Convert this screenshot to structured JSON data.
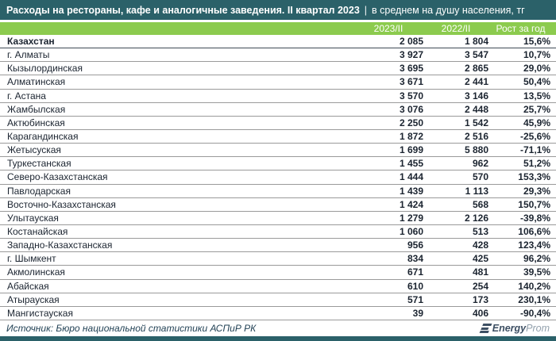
{
  "title": {
    "main": "Расходы на рестораны, кафе и аналогичные заведения. II квартал 2023",
    "separator": "|",
    "sub": "в среднем на душу населения, тг"
  },
  "table": {
    "columns": [
      "2023/II",
      "2022/II",
      "Рост за год"
    ],
    "rows": [
      {
        "region": "Казахстан",
        "v2023": "2 085",
        "v2022": "1 804",
        "growth": "15,6%",
        "total": true
      },
      {
        "region": "г. Алматы",
        "v2023": "3 927",
        "v2022": "3 547",
        "growth": "10,7%"
      },
      {
        "region": "Кызылординская",
        "v2023": "3 695",
        "v2022": "2 865",
        "growth": "29,0%"
      },
      {
        "region": "Алматинская",
        "v2023": "3 671",
        "v2022": "2 441",
        "growth": "50,4%"
      },
      {
        "region": "г. Астана",
        "v2023": "3 570",
        "v2022": "3 146",
        "growth": "13,5%"
      },
      {
        "region": "Жамбылская",
        "v2023": "3 076",
        "v2022": "2 448",
        "growth": "25,7%"
      },
      {
        "region": "Актюбинская",
        "v2023": "2 250",
        "v2022": "1 542",
        "growth": "45,9%"
      },
      {
        "region": "Карагандинская",
        "v2023": "1 872",
        "v2022": "2 516",
        "growth": "-25,6%"
      },
      {
        "region": "Жетысуская",
        "v2023": "1 699",
        "v2022": "5 880",
        "growth": "-71,1%"
      },
      {
        "region": "Туркестанская",
        "v2023": "1 455",
        "v2022": "962",
        "growth": "51,2%"
      },
      {
        "region": "Северо-Казахстанская",
        "v2023": "1 444",
        "v2022": "570",
        "growth": "153,3%"
      },
      {
        "region": "Павлодарская",
        "v2023": "1 439",
        "v2022": "1 113",
        "growth": "29,3%"
      },
      {
        "region": "Восточно-Казахстанская",
        "v2023": "1 424",
        "v2022": "568",
        "growth": "150,7%"
      },
      {
        "region": "Улытауская",
        "v2023": "1 279",
        "v2022": "2 126",
        "growth": "-39,8%"
      },
      {
        "region": "Костанайская",
        "v2023": "1 060",
        "v2022": "513",
        "growth": "106,6%"
      },
      {
        "region": "Западно-Казахстанская",
        "v2023": "956",
        "v2022": "428",
        "growth": "123,4%"
      },
      {
        "region": "г. Шымкент",
        "v2023": "834",
        "v2022": "425",
        "growth": "96,2%"
      },
      {
        "region": "Акмолинская",
        "v2023": "671",
        "v2022": "481",
        "growth": "39,5%"
      },
      {
        "region": "Абайская",
        "v2023": "610",
        "v2022": "254",
        "growth": "140,2%"
      },
      {
        "region": "Атырауская",
        "v2023": "571",
        "v2022": "173",
        "growth": "230,1%"
      },
      {
        "region": "Мангистауская",
        "v2023": "39",
        "v2022": "406",
        "growth": "-90,4%"
      }
    ]
  },
  "footer": {
    "source": "Источник: Бюро национальной статистики АСПиР РК",
    "logo_energy": "Energy",
    "logo_prom": "Prom"
  },
  "colors": {
    "teal": "#2b6169",
    "green": "#8ccb4e",
    "text": "#1b2430",
    "logo_dark": "#3d4f63",
    "logo_light": "#93a1ad"
  }
}
